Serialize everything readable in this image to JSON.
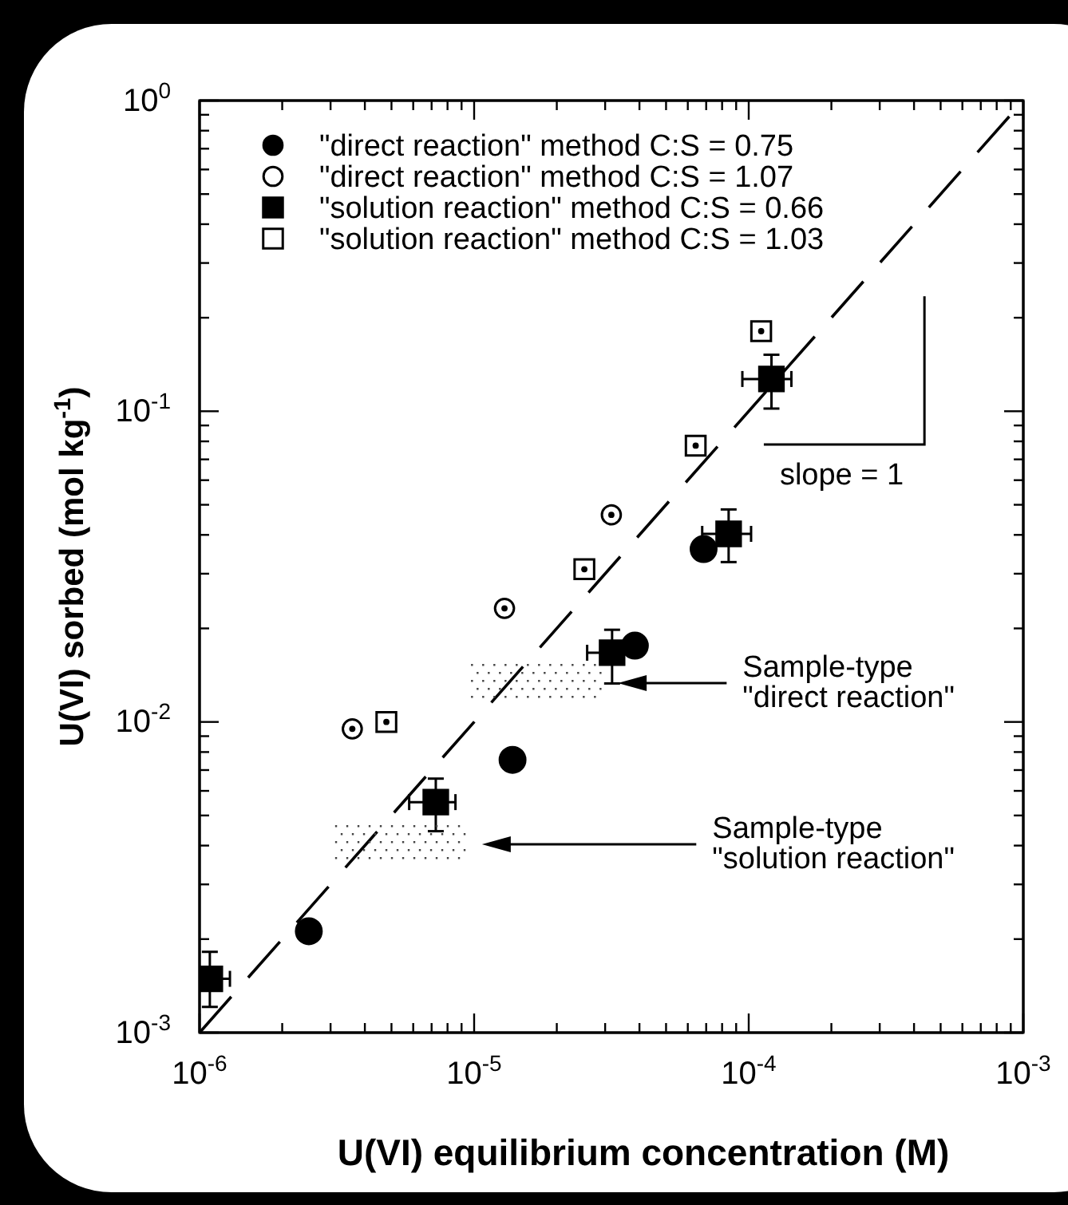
{
  "chart_data": {
    "type": "scatter",
    "xlabel": "U(VI) equilibrium concentration (M)",
    "ylabel": "U(VI) sorbed (mol kg$^{-1}$)",
    "log": "xy",
    "legend": "top left",
    "grid": false,
    "xlim": [
      1e-06,
      0.001
    ],
    "ylim": [
      0.001,
      1
    ],
    "xticks": [
      {
        "value": 1e-06,
        "label": "10$^{-6}$"
      },
      {
        "value": 2e-06,
        "label": null
      },
      {
        "value": 3e-06,
        "label": null
      },
      {
        "value": 4e-06,
        "label": null
      },
      {
        "value": 5e-06,
        "label": null
      },
      {
        "value": 6e-06,
        "label": null
      },
      {
        "value": 7e-06,
        "label": null
      },
      {
        "value": 8e-06,
        "label": null
      },
      {
        "value": 9e-06,
        "label": null
      },
      {
        "value": 1e-05,
        "label": "10$^{-5}$"
      },
      {
        "value": 2e-05,
        "label": null
      },
      {
        "value": 3e-05,
        "label": null
      },
      {
        "value": 4e-05,
        "label": null
      },
      {
        "value": 5e-05,
        "label": null
      },
      {
        "value": 6e-05,
        "label": null
      },
      {
        "value": 7e-05,
        "label": null
      },
      {
        "value": 8e-05,
        "label": null
      },
      {
        "value": 9e-05,
        "label": null
      },
      {
        "value": 0.0001,
        "label": "10$^{-4}$"
      },
      {
        "value": 0.0002,
        "label": null
      },
      {
        "value": 0.0003,
        "label": null
      },
      {
        "value": 0.0004,
        "label": null
      },
      {
        "value": 0.0005,
        "label": null
      },
      {
        "value": 0.0006,
        "label": null
      },
      {
        "value": 0.0007,
        "label": null
      },
      {
        "value": 0.0008,
        "label": null
      },
      {
        "value": 0.0009,
        "label": null
      },
      {
        "value": 0.001,
        "label": "10$^{-3}$"
      }
    ],
    "yticks": [
      {
        "value": 0.001,
        "label": "10$^{-3}$"
      },
      {
        "value": 0.002,
        "label": null
      },
      {
        "value": 0.003,
        "label": null
      },
      {
        "value": 0.004,
        "label": null
      },
      {
        "value": 0.005,
        "label": null
      },
      {
        "value": 0.006,
        "label": null
      },
      {
        "value": 0.007,
        "label": null
      },
      {
        "value": 0.008,
        "label": null
      },
      {
        "value": 0.009,
        "label": null
      },
      {
        "value": 0.01,
        "label": "10$^{-2}$"
      },
      {
        "value": 0.02,
        "label": null
      },
      {
        "value": 0.03,
        "label": null
      },
      {
        "value": 0.04,
        "label": null
      },
      {
        "value": 0.05,
        "label": null
      },
      {
        "value": 0.06,
        "label": null
      },
      {
        "value": 0.07,
        "label": null
      },
      {
        "value": 0.08,
        "label": null
      },
      {
        "value": 0.09,
        "label": null
      },
      {
        "value": 0.1,
        "label": "10$^{-1}$"
      },
      {
        "value": 0.2,
        "label": null
      },
      {
        "value": 0.3,
        "label": null
      },
      {
        "value": 0.4,
        "label": null
      },
      {
        "value": 0.5,
        "label": null
      },
      {
        "value": 0.6,
        "label": null
      },
      {
        "value": 0.7,
        "label": null
      },
      {
        "value": 0.8,
        "label": null
      },
      {
        "value": 0.9,
        "label": null
      },
      {
        "value": 1,
        "label": "10$^{0}$"
      }
    ],
    "series": [
      {
        "type": "line",
        "line_style": "dashed",
        "marker": "none",
        "color": "#000000",
        "x": [
          1e-06,
          0.001
        ],
        "values": [
          0.001,
          1
        ]
      },
      {
        "name": "\"direct reaction\" method C:S = 0.75",
        "marker": "circle",
        "color": "#000000",
        "x": [
          2.5e-06,
          1.38e-05,
          3.85e-05,
          6.85e-05
        ],
        "values": [
          0.00212,
          0.00755,
          0.0176,
          0.036
        ]
      },
      {
        "name": "\"direct reaction\" method C:S = 1.07",
        "marker": "circle",
        "color": "#ffffff",
        "x": [
          3.6e-06,
          1.29e-05,
          3.16e-05
        ],
        "values": [
          0.0095,
          0.0232,
          0.0464
        ]
      },
      {
        "name": "\"solution reaction\" method C:S = 0.66",
        "marker": "square",
        "color": "#000000",
        "x": [
          1.09e-06,
          7.25e-06,
          3.18e-05,
          8.45e-05,
          0.000121
        ],
        "values": [
          0.00149,
          0.00552,
          0.0167,
          0.0403,
          0.127
        ],
        "errors": [
          [
            0.00121,
            0.00182
          ],
          [
            0.00445,
            0.00657
          ],
          [
            0.0133,
            0.0198
          ],
          [
            0.0327,
            0.0483
          ],
          [
            0.102,
            0.152
          ]
        ],
        "xerrors": [
          [
            1e-06,
            1.29e-06
          ],
          [
            5.8e-06,
            8.55e-06
          ],
          [
            2.58e-05,
            3.18e-05
          ],
          [
            6.77e-05,
            0.000102
          ],
          [
            9.48e-05,
            0.000143
          ]
        ]
      },
      {
        "name": "\"solution reaction\" method C:S = 1.03",
        "marker": "square",
        "color": "#ffffff",
        "x": [
          4.79e-06,
          2.52e-05,
          6.41e-05,
          0.000111
        ],
        "values": [
          0.01,
          0.031,
          0.0775,
          0.181
        ]
      }
    ],
    "annotations": [
      "slope = 1",
      "Sample-type\n\"direct reaction\"",
      "Sample-type\n\"solution reaction\""
    ]
  }
}
